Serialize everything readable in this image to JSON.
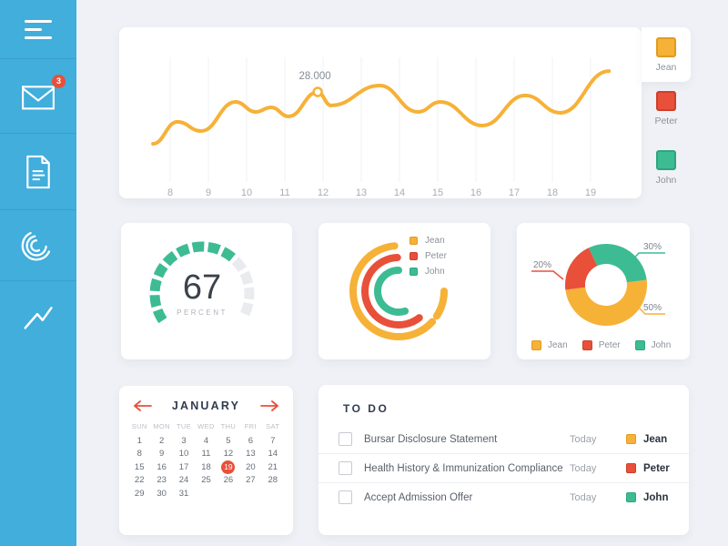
{
  "colors": {
    "sidebar": "#41AEDC",
    "background": "#EFF1F6",
    "card": "#FFFFFF",
    "accent_red": "#E8503A",
    "accent_yellow": "#F6B137",
    "accent_green": "#3DBC93",
    "grid_line": "#EEF0F4",
    "muted_text": "#9CA2AB",
    "dark_text": "#323C50"
  },
  "sidebar": {
    "items": [
      {
        "icon": "menu-icon"
      },
      {
        "icon": "mail-icon",
        "badge": "3"
      },
      {
        "icon": "document-icon"
      },
      {
        "icon": "radial-chart-icon"
      },
      {
        "icon": "line-chart-icon"
      }
    ]
  },
  "chart_data": [
    {
      "type": "line",
      "x_ticks": [
        "8",
        "9",
        "10",
        "11",
        "12",
        "13",
        "14",
        "15",
        "16",
        "17",
        "18",
        "19"
      ],
      "series": [
        {
          "name": "Jean",
          "color": "#F6B137",
          "points": [
            [
              7.55,
              11900
            ],
            [
              8.19,
              18700
            ],
            [
              8.81,
              15850
            ],
            [
              9.71,
              24900
            ],
            [
              10.24,
              21800
            ],
            [
              10.64,
              23200
            ],
            [
              11.1,
              20400
            ],
            [
              11.86,
              28000
            ],
            [
              12.21,
              23800
            ],
            [
              13.48,
              30000
            ],
            [
              14.48,
              21800
            ],
            [
              15.07,
              24900
            ],
            [
              16.17,
              17550
            ],
            [
              17.29,
              26900
            ],
            [
              18.21,
              21500
            ],
            [
              19.48,
              34500
            ]
          ]
        }
      ],
      "annotation": {
        "label": "28.000",
        "point_index": 7
      },
      "legend": [
        {
          "label": "Jean",
          "color": "#F6B137",
          "border": "#E29A21",
          "active": true
        },
        {
          "label": "Peter",
          "color": "#E8503A",
          "border": "#CE3F2B",
          "active": false
        },
        {
          "label": "John",
          "color": "#3DBC93",
          "border": "#2EA57E",
          "active": false
        }
      ]
    },
    {
      "type": "gauge",
      "value": "67",
      "unit": "PERCENT",
      "segments": 13,
      "filled": 9,
      "fill_color": "#3DBC93",
      "empty_color": "#E9EBEF"
    },
    {
      "type": "radial-progress",
      "legend": [
        {
          "label": "Jean",
          "color": "#F6B137",
          "border": "#E29A21"
        },
        {
          "label": "Peter",
          "color": "#E8503A",
          "border": "#CE3F2B"
        },
        {
          "label": "John",
          "color": "#3DBC93",
          "border": "#2EA57E"
        }
      ],
      "series": [
        {
          "name": "Jean",
          "color": "#F6B137",
          "radius": 50,
          "arcs_deg": [
            [
              95,
              318
            ],
            [
              327,
              360
            ]
          ]
        },
        {
          "name": "Peter",
          "color": "#E8503A",
          "radius": 37,
          "arcs_deg": [
            [
              92,
              308
            ]
          ]
        },
        {
          "name": "John",
          "color": "#3DBC93",
          "radius": 23,
          "arcs_deg": [
            [
              90,
              288
            ]
          ]
        }
      ]
    },
    {
      "type": "pie",
      "slices": [
        {
          "label": "Jean",
          "value": 50,
          "display": "50%",
          "color": "#F6B137",
          "border": "#E29A21"
        },
        {
          "label": "Peter",
          "value": 20,
          "display": "20%",
          "color": "#E8503A",
          "border": "#CE3F2B"
        },
        {
          "label": "John",
          "value": 30,
          "display": "30%",
          "color": "#3DBC93",
          "border": "#2EA57E"
        }
      ]
    }
  ],
  "calendar": {
    "title": "JANUARY",
    "weekdays": [
      "SUN",
      "MON",
      "TUE",
      "WED",
      "THU",
      "FRI",
      "SAT"
    ],
    "dates": [
      1,
      2,
      3,
      4,
      5,
      6,
      7,
      8,
      9,
      10,
      11,
      12,
      13,
      14,
      15,
      16,
      17,
      18,
      19,
      20,
      21,
      22,
      23,
      24,
      25,
      26,
      27,
      28,
      29,
      30,
      31
    ],
    "selected_date": 19,
    "start_offset": 0
  },
  "todo": {
    "title": "TO DO",
    "items": [
      {
        "task": "Bursar Disclosure Statement",
        "due": "Today",
        "assignee": "Jean",
        "color": "#F6B137",
        "border": "#E29A21",
        "checked": false
      },
      {
        "task": "Health History & Immunization Compliance",
        "due": "Today",
        "assignee": "Peter",
        "color": "#E8503A",
        "border": "#CE3F2B",
        "checked": false
      },
      {
        "task": "Accept Admission Offer",
        "due": "Today",
        "assignee": "John",
        "color": "#3DBC93",
        "border": "#2EA57E",
        "checked": false
      }
    ]
  }
}
